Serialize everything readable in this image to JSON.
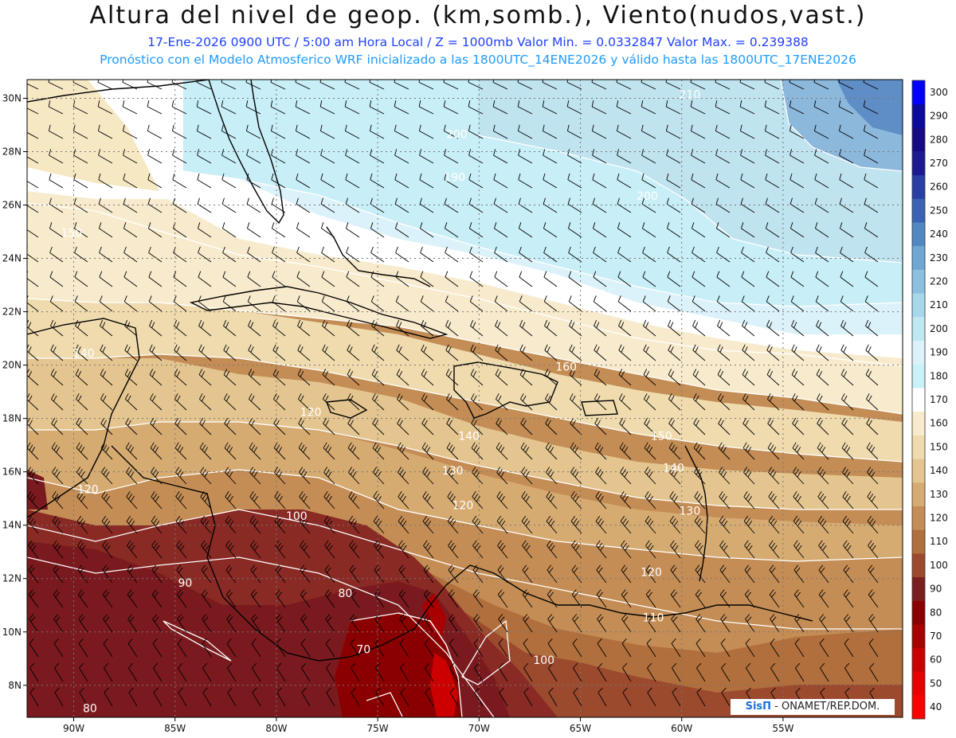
{
  "header": {
    "title": "Altura del nivel de geop. (km,somb.), Viento(nudos,vast.)",
    "subtitle1": "17-Ene-2026  0900 UTC / 5:00 am Hora Local / Z = 1000mb  Valor Min. = 0.0332847  Valor Max. = 0.239388",
    "subtitle2": "Pronóstico con el Modelo Atmosferico WRF inicializado a las 1800UTC_14ENE2026 y válido hasta las  1800UTC_17ENE2026"
  },
  "map": {
    "lon_range": [
      -92.3,
      -49.1
    ],
    "lat_range": [
      6.8,
      30.7
    ],
    "lon_ticks": [
      {
        "value": -90,
        "label": "90W"
      },
      {
        "value": -85,
        "label": "85W"
      },
      {
        "value": -80,
        "label": "80W"
      },
      {
        "value": -75,
        "label": "75W"
      },
      {
        "value": -70,
        "label": "70W"
      },
      {
        "value": -65,
        "label": "65W"
      },
      {
        "value": -60,
        "label": "60W"
      },
      {
        "value": -55,
        "label": "55W"
      }
    ],
    "lat_ticks": [
      {
        "value": 8,
        "label": "8N"
      },
      {
        "value": 10,
        "label": "10N"
      },
      {
        "value": 12,
        "label": "12N"
      },
      {
        "value": 14,
        "label": "14N"
      },
      {
        "value": 16,
        "label": "16N"
      },
      {
        "value": 18,
        "label": "18N"
      },
      {
        "value": 20,
        "label": "20N"
      },
      {
        "value": 22,
        "label": "22N"
      },
      {
        "value": 24,
        "label": "24N"
      },
      {
        "value": 26,
        "label": "26N"
      },
      {
        "value": 28,
        "label": "28N"
      },
      {
        "value": 30,
        "label": "30N"
      }
    ],
    "contour_labels": [
      {
        "text": "210",
        "lon": -59.6,
        "lat": 30.0
      },
      {
        "text": "200",
        "lon": -71.1,
        "lat": 28.5
      },
      {
        "text": "190",
        "lon": -71.2,
        "lat": 26.9
      },
      {
        "text": "200",
        "lon": -61.7,
        "lat": 26.2
      },
      {
        "text": "150",
        "lon": -90.1,
        "lat": 24.8
      },
      {
        "text": "140",
        "lon": -89.5,
        "lat": 20.3
      },
      {
        "text": "120",
        "lon": -78.3,
        "lat": 18.1
      },
      {
        "text": "140",
        "lon": -70.5,
        "lat": 17.2
      },
      {
        "text": "150",
        "lon": -61.0,
        "lat": 17.2
      },
      {
        "text": "140",
        "lon": -60.4,
        "lat": 16.0
      },
      {
        "text": "130",
        "lon": -71.3,
        "lat": 15.9
      },
      {
        "text": "120",
        "lon": -89.3,
        "lat": 15.2
      },
      {
        "text": "100",
        "lon": -79.0,
        "lat": 14.2
      },
      {
        "text": "120",
        "lon": -70.8,
        "lat": 14.6
      },
      {
        "text": "130",
        "lon": -59.6,
        "lat": 14.4
      },
      {
        "text": "120",
        "lon": -61.5,
        "lat": 12.1
      },
      {
        "text": "90",
        "lon": -84.5,
        "lat": 11.7
      },
      {
        "text": "80",
        "lon": -76.6,
        "lat": 11.3
      },
      {
        "text": "110",
        "lon": -61.4,
        "lat": 10.4
      },
      {
        "text": "70",
        "lon": -75.7,
        "lat": 9.2
      },
      {
        "text": "100",
        "lon": -66.8,
        "lat": 8.8
      },
      {
        "text": "80",
        "lon": -89.2,
        "lat": 7.0
      },
      {
        "text": "160",
        "lon": -65.7,
        "lat": 19.8
      }
    ]
  },
  "colorbar": {
    "levels": [
      "40",
      "50",
      "60",
      "70",
      "80",
      "90",
      "100",
      "110",
      "120",
      "130",
      "140",
      "150",
      "160",
      "170",
      "180",
      "190",
      "200",
      "210",
      "220",
      "230",
      "240",
      "250",
      "260",
      "270",
      "280",
      "290",
      "300"
    ],
    "colors": [
      "#ff0000",
      "#e80000",
      "#cc0000",
      "#a80000",
      "#8a0000",
      "#7a1f20",
      "#9b4a2e",
      "#b06f3c",
      "#c48d55",
      "#d6ab72",
      "#e4c590",
      "#efdbae",
      "#f8ebcd",
      "#ffffff",
      "#c8f1f8",
      "#dcf2fa",
      "#bfe8f2",
      "#a6d8ea",
      "#8cc0e0",
      "#6ea6d4",
      "#5088c3",
      "#3a64b3",
      "#2a3fa3",
      "#1d1a8f",
      "#160a82",
      "#0b0a9a",
      "#0000ff"
    ]
  },
  "credit": {
    "logo": "SisΠ",
    "text": " - ONAMET/REP.DOM."
  }
}
